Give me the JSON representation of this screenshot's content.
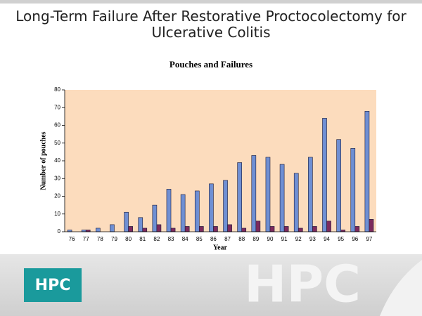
{
  "title": "Long-Term Failure After Restorative Proctocolectomy for Ulcerative Colitis",
  "logo": "HPC",
  "chart_data": {
    "type": "bar",
    "title": "Pouches and Failures",
    "ylabel": "Number of pouches",
    "xlabel": "Year",
    "categories": [
      "76",
      "77",
      "78",
      "79",
      "80",
      "81",
      "82",
      "83",
      "84",
      "85",
      "86",
      "87",
      "88",
      "89",
      "90",
      "91",
      "92",
      "93",
      "94",
      "95",
      "96",
      "97"
    ],
    "series": [
      {
        "color": "#6f8fd3",
        "values": [
          1,
          1,
          2,
          4,
          11,
          8,
          15,
          24,
          21,
          23,
          27,
          29,
          39,
          43,
          42,
          38,
          33,
          42,
          64,
          52,
          47,
          68
        ]
      },
      {
        "color": "#7d2a5c",
        "values": [
          0,
          1,
          0,
          0,
          3,
          2,
          4,
          2,
          3,
          3,
          3,
          4,
          2,
          6,
          3,
          3,
          2,
          3,
          6,
          1,
          3,
          7
        ]
      }
    ],
    "ylim": [
      0,
      80
    ],
    "yticks": [
      0,
      10,
      20,
      30,
      40,
      50,
      60,
      70,
      80
    ],
    "background": "#fcdcbd"
  }
}
